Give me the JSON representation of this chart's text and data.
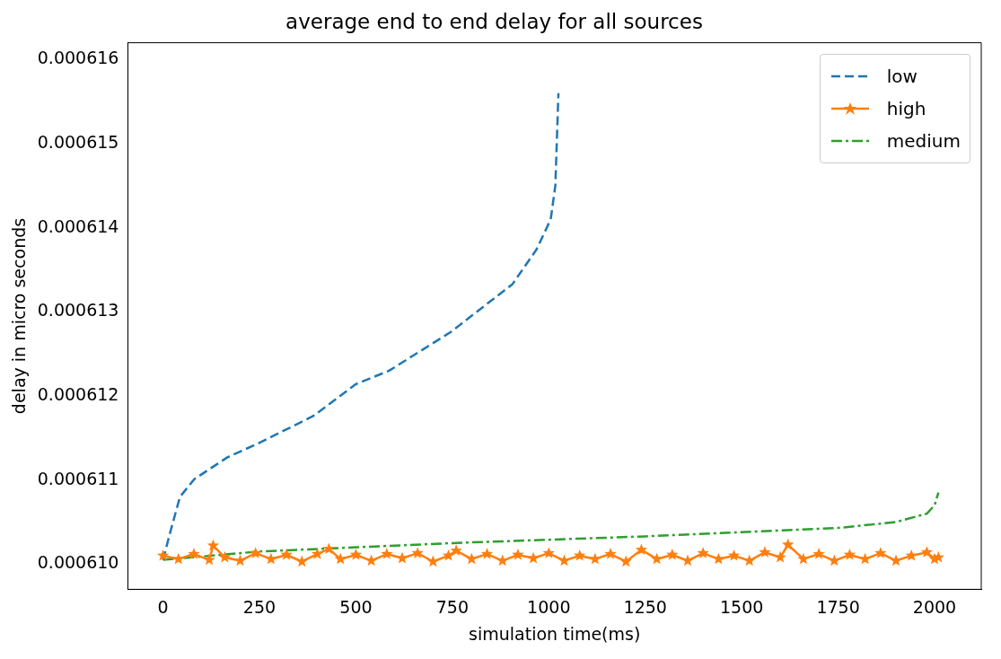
{
  "chart_data": {
    "type": "line",
    "title": "average end to end delay for all sources",
    "xlabel": "simulation time(ms)",
    "ylabel": "delay in micro seconds",
    "xlim": [
      -91,
      2121
    ],
    "xticks": [
      0,
      250,
      500,
      750,
      1000,
      1250,
      1500,
      1750,
      2000
    ],
    "ylim": [
      0.0006097,
      0.0006162
    ],
    "yticks": [
      {
        "value": 0.00061,
        "label": "0.000610"
      },
      {
        "value": 0.000611,
        "label": "0.000611"
      },
      {
        "value": 0.000612,
        "label": "0.000612"
      },
      {
        "value": 0.000613,
        "label": "0.000613"
      },
      {
        "value": 0.000614,
        "label": "0.000614"
      },
      {
        "value": 0.000615,
        "label": "0.000615"
      },
      {
        "value": 0.000616,
        "label": "0.000616"
      }
    ],
    "grid": false,
    "legend": "top right",
    "series": [
      {
        "name": "low",
        "color": "#1f77b4",
        "line_style": "dashed",
        "marker": "none",
        "x": [
          0,
          20,
          44,
          81,
          167,
          249,
          389,
          500,
          586,
          746,
          833,
          906,
          968,
          1005,
          1017,
          1025
        ],
        "values": [
          0.00061005,
          0.0006104,
          0.0006108,
          0.00061101,
          0.00061127,
          0.00061144,
          0.00061176,
          0.00061214,
          0.0006123,
          0.00061276,
          0.00061307,
          0.00061333,
          0.00061374,
          0.0006141,
          0.0006145,
          0.0006156
        ]
      },
      {
        "name": "high",
        "color": "#ff7f0e",
        "line_style": "solid",
        "marker": "star",
        "x": [
          0,
          40,
          80,
          120,
          130,
          160,
          200,
          240,
          280,
          320,
          360,
          400,
          430,
          460,
          500,
          540,
          580,
          620,
          660,
          700,
          740,
          760,
          800,
          840,
          880,
          920,
          960,
          1000,
          1040,
          1080,
          1120,
          1160,
          1200,
          1240,
          1280,
          1320,
          1360,
          1400,
          1440,
          1480,
          1520,
          1560,
          1600,
          1620,
          1660,
          1700,
          1740,
          1780,
          1820,
          1860,
          1900,
          1940,
          1980,
          2000,
          2010
        ],
        "values": [
          0.0006101,
          0.00061006,
          0.00061012,
          0.00061005,
          0.00061022,
          0.00061008,
          0.00061004,
          0.00061013,
          0.00061006,
          0.00061011,
          0.00061003,
          0.00061012,
          0.00061018,
          0.00061006,
          0.00061011,
          0.00061004,
          0.00061012,
          0.00061007,
          0.00061013,
          0.00061003,
          0.0006101,
          0.00061016,
          0.00061006,
          0.00061012,
          0.00061004,
          0.00061011,
          0.00061007,
          0.00061013,
          0.00061004,
          0.0006101,
          0.00061006,
          0.00061012,
          0.00061003,
          0.00061017,
          0.00061006,
          0.00061011,
          0.00061004,
          0.00061013,
          0.00061006,
          0.0006101,
          0.00061004,
          0.00061014,
          0.00061008,
          0.00061023,
          0.00061006,
          0.00061012,
          0.00061004,
          0.00061011,
          0.00061006,
          0.00061013,
          0.00061004,
          0.0006101,
          0.00061014,
          0.00061006,
          0.00061008
        ]
      },
      {
        "name": "medium",
        "color": "#2ca02c",
        "line_style": "dashdot",
        "marker": "none",
        "x": [
          0,
          250,
          500,
          750,
          1000,
          1250,
          1500,
          1750,
          1900,
          1980,
          2000,
          2010
        ],
        "values": [
          0.00061005,
          0.00061015,
          0.0006102,
          0.00061025,
          0.00061029,
          0.00061033,
          0.00061038,
          0.00061043,
          0.0006105,
          0.0006106,
          0.0006107,
          0.00061085
        ]
      }
    ]
  }
}
